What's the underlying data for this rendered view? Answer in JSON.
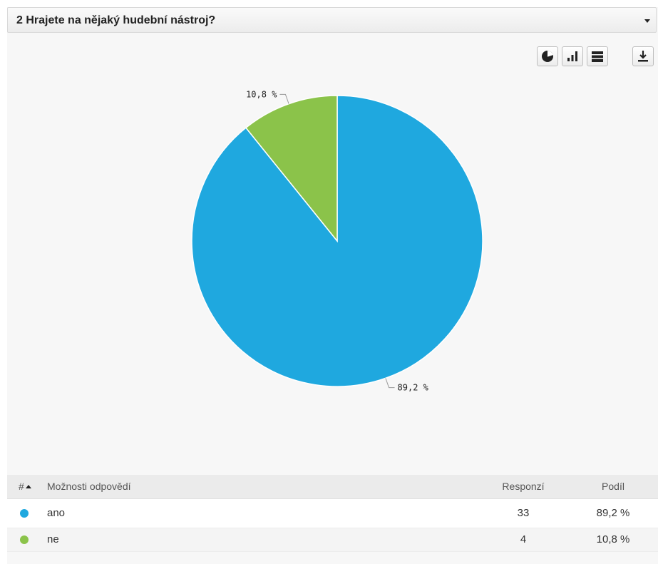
{
  "question": {
    "title": "2 Hrajete na nějaký hudební nástroj?"
  },
  "toolbar": {
    "icons": [
      "pie-chart-icon",
      "bar-chart-icon",
      "table-view-icon",
      "download-icon"
    ]
  },
  "chart_data": {
    "type": "pie",
    "slices": [
      {
        "label": "ano",
        "value": 89.2,
        "display": "89,2 %",
        "color": "#1fa8df"
      },
      {
        "label": "ne",
        "value": 10.8,
        "display": "10,8 %",
        "color": "#8bc34a"
      }
    ]
  },
  "table": {
    "headers": {
      "hash": "#",
      "option": "Možnosti odpovědí",
      "responses": "Responzí",
      "share": "Podíl"
    },
    "rows": [
      {
        "label": "ano",
        "responses": "33",
        "share": "89,2 %",
        "color": "#1fa8df"
      },
      {
        "label": "ne",
        "responses": "4",
        "share": "10,8 %",
        "color": "#8bc34a"
      }
    ]
  }
}
